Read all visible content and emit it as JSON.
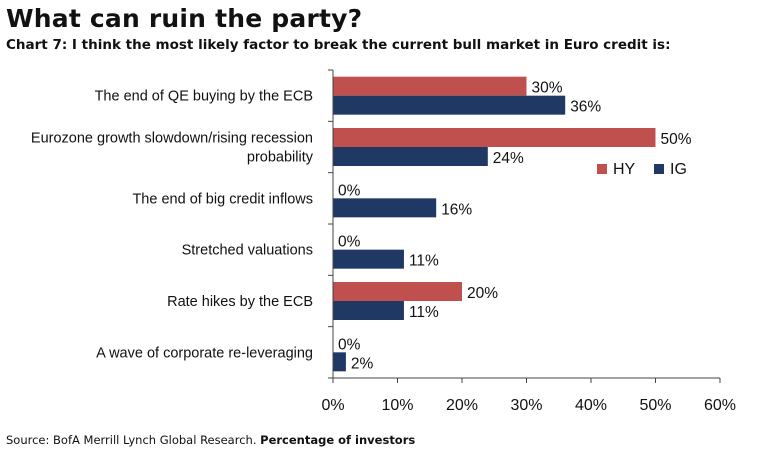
{
  "header": {
    "title": "What can ruin the party?",
    "subtitle": "Chart 7: I think the most likely factor to break the current bull market in Euro credit is:"
  },
  "footer": {
    "source": "Source: BofA Merrill Lynch Global Research.",
    "note": "Percentage of investors"
  },
  "colors": {
    "hy": "#C0504D",
    "ig": "#1F3864"
  },
  "chart_data": {
    "type": "bar",
    "orientation": "horizontal",
    "title": "What can ruin the party?",
    "subtitle": "Chart 7: I think the most likely factor to break the current bull market in Euro credit is:",
    "categories": [
      [
        "The end of QE buying by the ECB"
      ],
      [
        "Eurozone growth slowdown/rising recession",
        "probability"
      ],
      [
        "The end of big credit inflows"
      ],
      [
        "Stretched valuations"
      ],
      [
        "Rate hikes by the ECB"
      ],
      [
        "A wave of corporate re-leveraging"
      ]
    ],
    "series": [
      {
        "name": "HY",
        "values": [
          30,
          50,
          0,
          0,
          20,
          0
        ]
      },
      {
        "name": "IG",
        "values": [
          36,
          24,
          16,
          11,
          11,
          2
        ]
      }
    ],
    "xlim": [
      0,
      60
    ],
    "xticks": [
      0,
      10,
      20,
      30,
      40,
      50,
      60
    ],
    "tick_suffix": "%",
    "legend_position": "right",
    "grid": false
  }
}
